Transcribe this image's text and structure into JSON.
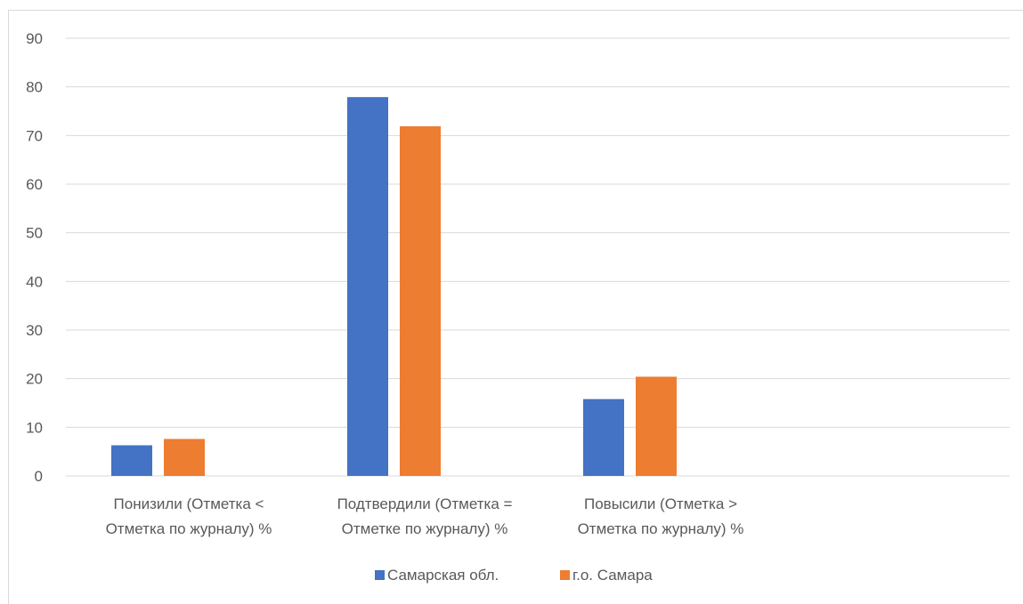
{
  "chart_data": {
    "type": "bar",
    "title": "",
    "xlabel": "",
    "ylabel": "",
    "ylim": [
      0,
      90
    ],
    "yticks": [
      0,
      10,
      20,
      30,
      40,
      50,
      60,
      70,
      80,
      90
    ],
    "grid": true,
    "legend_position": "bottom",
    "categories": [
      [
        "Понизили (Отметка <",
        "Отметка по журналу) %"
      ],
      [
        "Подтвердили (Отметка =",
        "Отметке по журналу) %"
      ],
      [
        "Повысили (Отметка >",
        "Отметка по журналу) %"
      ]
    ],
    "series": [
      {
        "name": "Самарская обл.",
        "color": "#4472C4",
        "values": [
          6.3,
          77.9,
          15.8
        ]
      },
      {
        "name": "г.о. Самара",
        "color": "#ED7D31",
        "values": [
          7.6,
          71.9,
          20.4
        ]
      }
    ]
  }
}
